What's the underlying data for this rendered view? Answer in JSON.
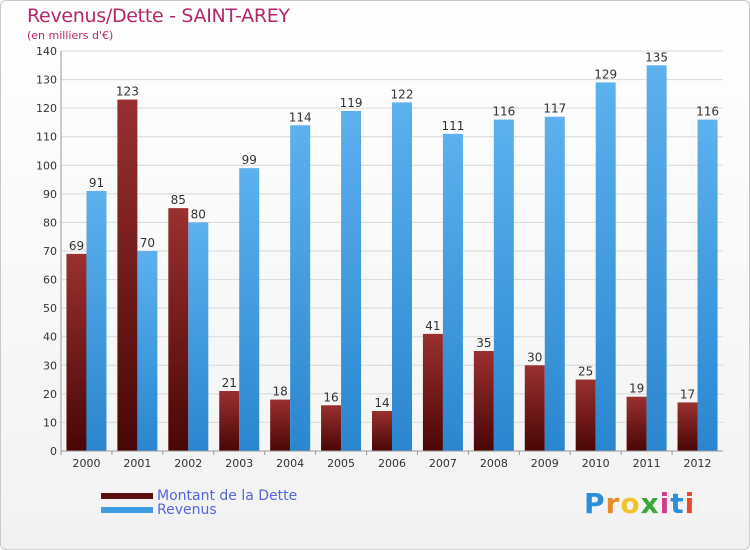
{
  "chart_data": {
    "type": "bar",
    "title": "Revenus/Dette - SAINT-AREY",
    "subtitle": "(en milliers d'€)",
    "categories": [
      "2000",
      "2001",
      "2002",
      "2003",
      "2004",
      "2005",
      "2006",
      "2007",
      "2008",
      "2009",
      "2010",
      "2011",
      "2012"
    ],
    "series": [
      {
        "name": "Montant de la Dette",
        "color": "#7a1a1a",
        "values": [
          69,
          123,
          85,
          21,
          18,
          16,
          14,
          41,
          35,
          30,
          25,
          19,
          17
        ]
      },
      {
        "name": "Revenus",
        "color": "#3f9de4",
        "values": [
          91,
          70,
          80,
          99,
          114,
          119,
          122,
          111,
          116,
          117,
          129,
          135,
          116
        ]
      }
    ],
    "yticks": [
      "0",
      "10",
      "20",
      "30",
      "40",
      "50",
      "60",
      "70",
      "80",
      "90",
      "100",
      "110",
      "120",
      "130",
      "140"
    ],
    "ylim": [
      0,
      140
    ],
    "grid": true,
    "legend_position": "bottom-left",
    "data_labels": true
  },
  "logo": {
    "letters": [
      "P",
      "r",
      "o",
      "x",
      "i",
      "t",
      "i"
    ],
    "colors": [
      "#2b8fd8",
      "#e8892b",
      "#f2c12e",
      "#3aa83a",
      "#d33c8a",
      "#2b8fd8",
      "#e84a2b"
    ]
  }
}
